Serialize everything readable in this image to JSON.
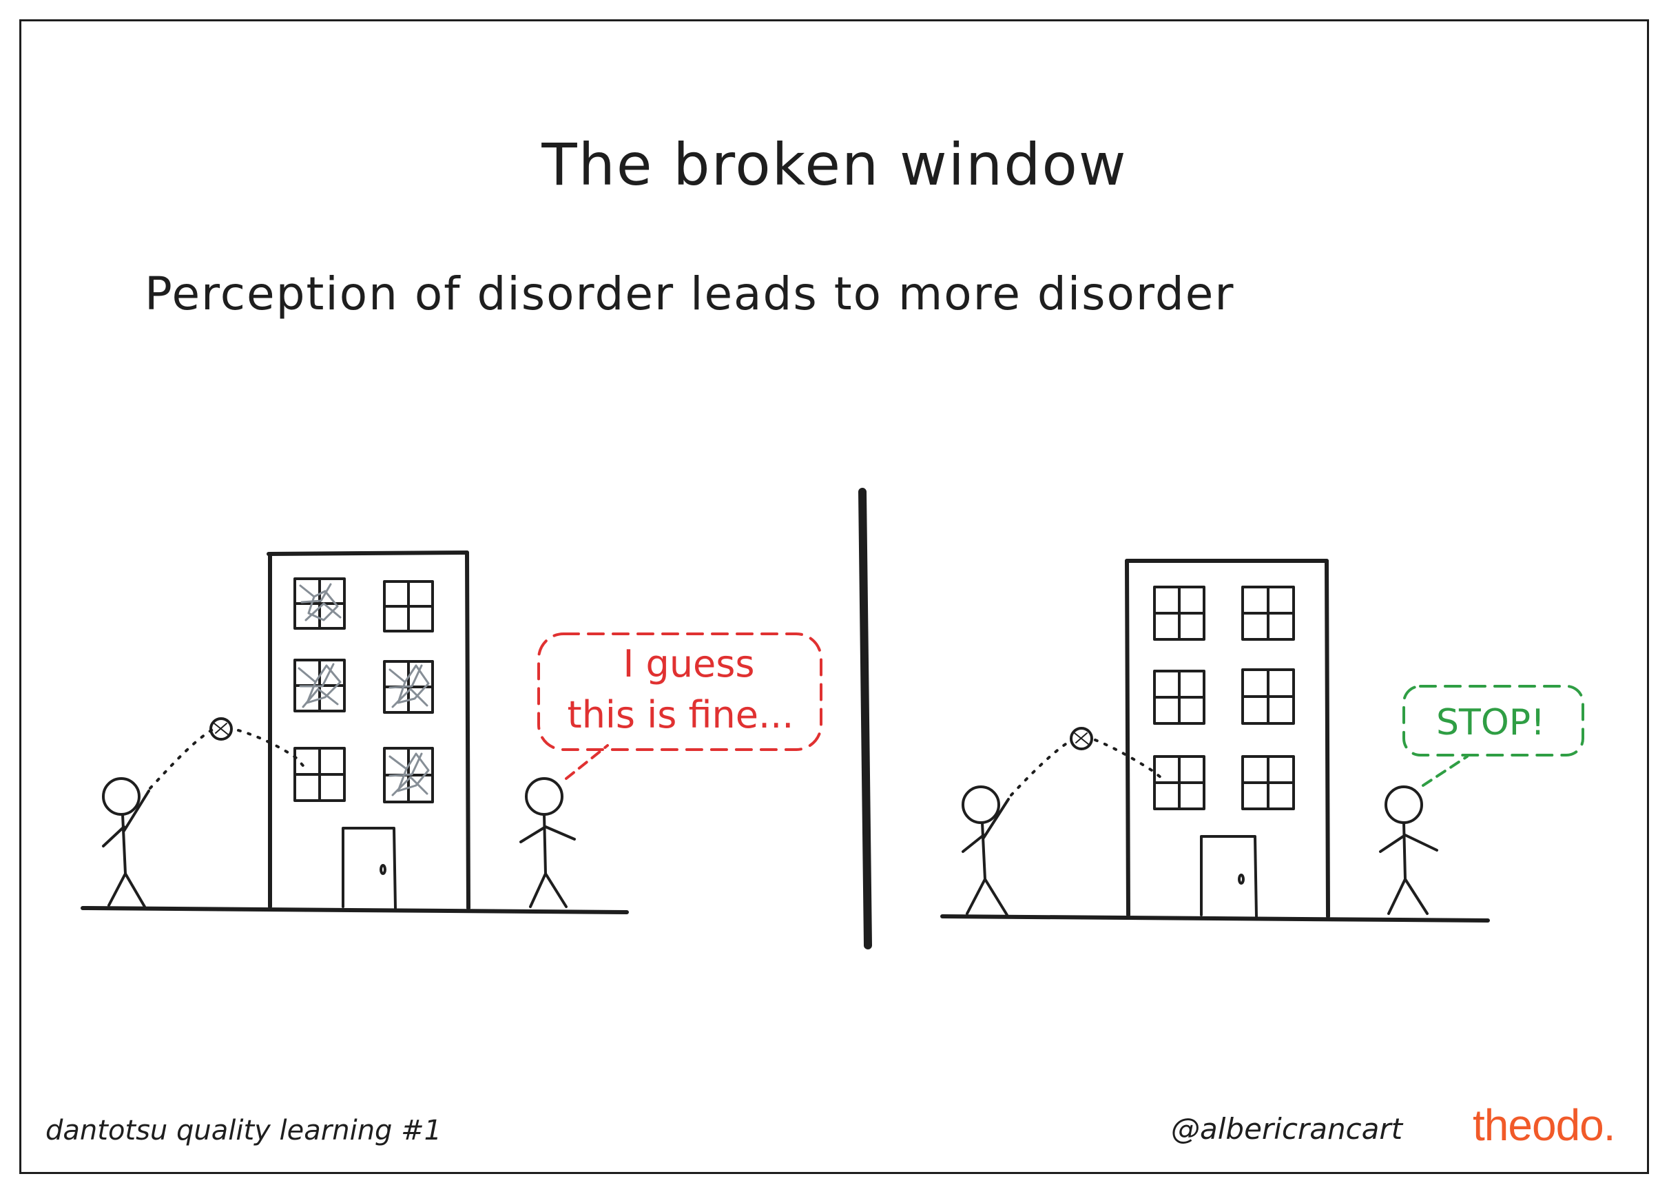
{
  "title": "The broken window",
  "subtitle": "Perception of disorder leads to more disorder",
  "left_bubble": {
    "line1": "I guess",
    "line2": "this is fine..."
  },
  "right_bubble": {
    "text": "STOP!"
  },
  "footer": {
    "series": "dantotsu quality learning #1",
    "handle": "@albericrancart",
    "brand": "theodo."
  },
  "colors": {
    "ink": "#1e1e1e",
    "red": "#e03131",
    "green": "#2f9e44",
    "brand": "#f15a29",
    "crack": "#868e96"
  }
}
